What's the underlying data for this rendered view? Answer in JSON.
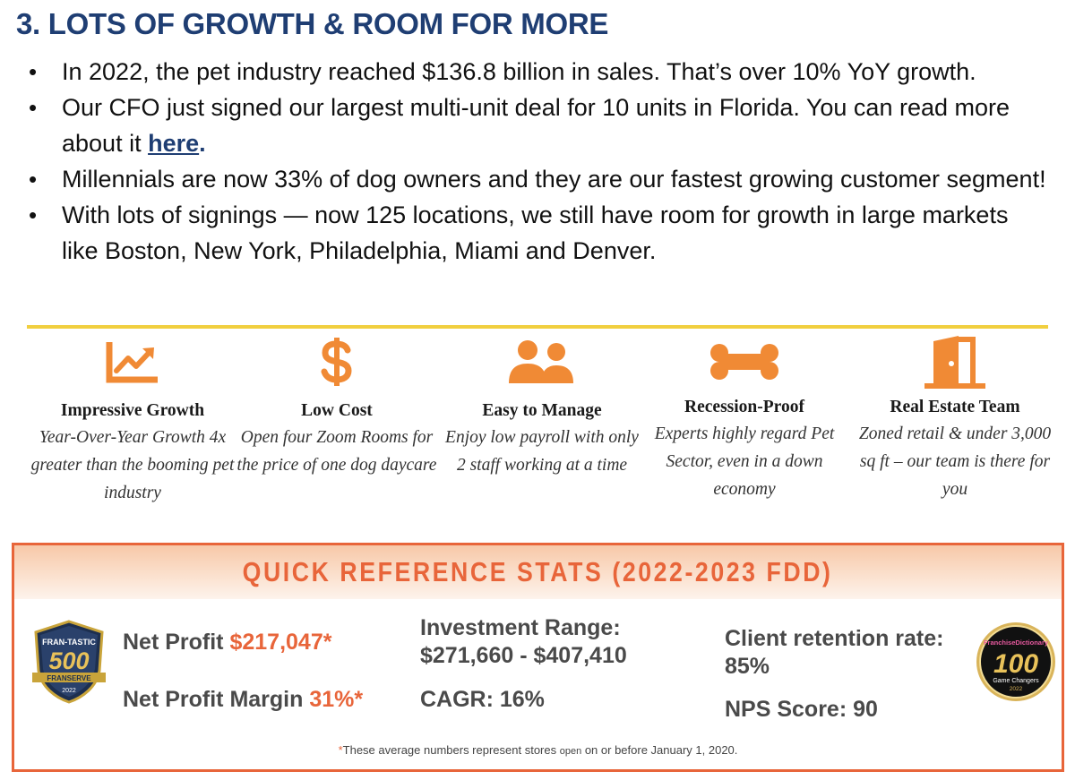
{
  "heading": "3. LOTS OF GROWTH & ROOM FOR MORE",
  "bullets": [
    {
      "text": "In 2022, the pet industry reached $136.8 billion in sales. That’s over 10% YoY growth."
    },
    {
      "text": "Our CFO just signed our largest multi-unit deal for 10 units in Florida.  You can read more about it ",
      "link": "here",
      "after": "."
    },
    {
      "text": "Millennials are now 33% of dog owners and they are our fastest growing customer segment!"
    },
    {
      "text": "With lots of signings — now 125 locations, we still have room for growth in large markets like Boston, New York, Philadelphia, Miami and Denver."
    }
  ],
  "colors": {
    "accent": "#e8653a",
    "navy": "#1f3e73",
    "gold": "#f1cf3f",
    "icon": "#f08a35"
  },
  "features": [
    {
      "icon": "growth-chart-icon",
      "title": "Impressive Growth",
      "desc": "Year-Over-Year Growth 4x greater than the booming pet industry"
    },
    {
      "icon": "dollar-icon",
      "title": "Low Cost",
      "desc": "Open four Zoom Rooms for the price of one dog daycare"
    },
    {
      "icon": "people-icon",
      "title": "Easy to Manage",
      "desc": "Enjoy low payroll with only 2 staff working at a time"
    },
    {
      "icon": "bone-icon",
      "title": "Recession-Proof",
      "desc": "Experts highly regard Pet Sector, even in a down economy"
    },
    {
      "icon": "door-icon",
      "title": "Real Estate Team",
      "desc": "Zoned retail & under 3,000 sq ft – our team is there for you"
    }
  ],
  "stats": {
    "title": "QUICK REFERENCE STATS (2022-2023 FDD)",
    "net_profit_label": "Net Profit ",
    "net_profit_value": "$217,047*",
    "margin_label": "Net Profit Margin ",
    "margin_value": "31%*",
    "investment_label": "Investment Range:",
    "investment_value": "$271,660 - $407,410",
    "cagr": "CAGR: 16%",
    "retention_label": "Client retention rate:",
    "retention_value": "85%",
    "nps": "NPS Score: 90",
    "footnote_star": "*",
    "footnote_a": "These average numbers represent stores ",
    "footnote_small": "open",
    "footnote_b": " on or before January 1, 2020."
  },
  "badges": {
    "fran": {
      "top": "FRAN-TASTIC",
      "number": "500",
      "brand": "FRANSERVE",
      "year": "2022"
    },
    "franchise": {
      "top": "FranchiseDictionary",
      "number": "100",
      "sub": "Game Changers",
      "year": "2022"
    }
  }
}
